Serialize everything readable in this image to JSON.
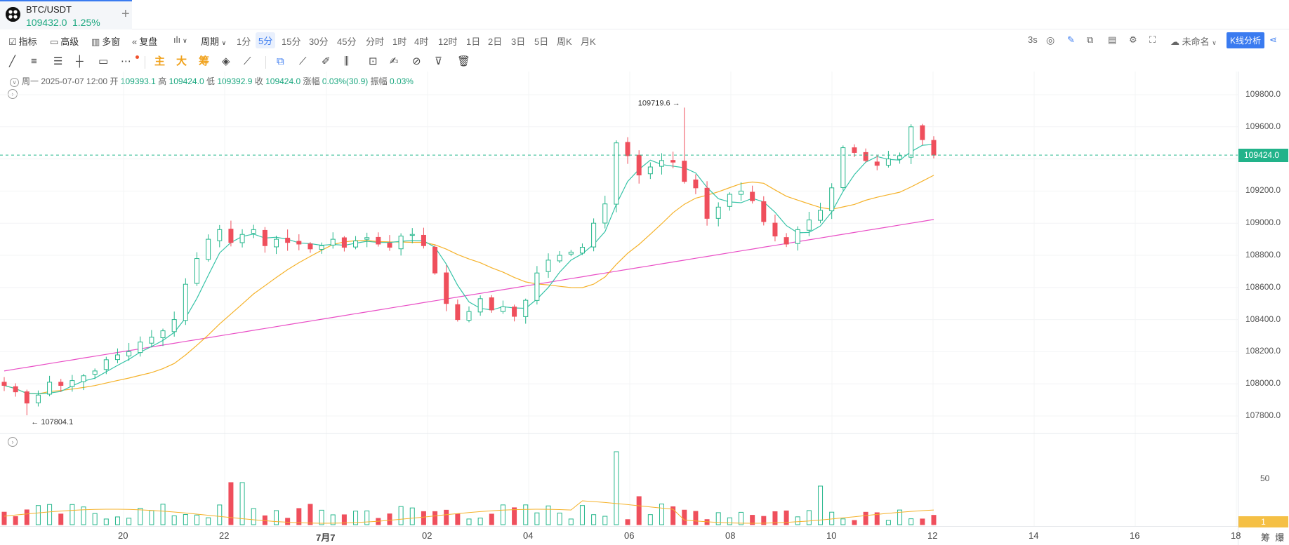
{
  "tab": {
    "symbol": "BTC/USDT",
    "price": "109432.0",
    "change": "1.25%",
    "add_icon": "plus-icon"
  },
  "toolbar": {
    "indicators": "指标",
    "advanced": "高级",
    "multi": "多窗",
    "replay": "复盘",
    "chart_type_icon": "candlestick-icon",
    "period": "周期",
    "periods": [
      "1分",
      "5分",
      "15分",
      "30分",
      "45分",
      "分时",
      "1时",
      "4时",
      "12时",
      "1日",
      "2日",
      "3日",
      "5日",
      "周K",
      "月K"
    ],
    "active_period": "5分",
    "refresh": "3s",
    "unnamed": "未命名",
    "kline_analysis": "K线分析"
  },
  "drawing": {
    "main": "主",
    "big": "大",
    "chips": "筹"
  },
  "ohlc": {
    "date": "周一 2025-07-07 12:00",
    "open_label": "开",
    "open": "109393.1",
    "high_label": "高",
    "high": "109424.0",
    "low_label": "低",
    "low": "109392.9",
    "close_label": "收",
    "close": "109424.0",
    "change_label": "涨幅",
    "change": "0.03%(30.9)",
    "amp_label": "振幅",
    "amp": "0.03%"
  },
  "price_axis": {
    "labels": [
      "109800.0",
      "109600.0",
      "109400.0",
      "109200.0",
      "109000.0",
      "108800.0",
      "108600.0",
      "108400.0",
      "108200.0",
      "108000.0",
      "107800.0"
    ],
    "current": "109424.0"
  },
  "volume_axis": {
    "label": "50",
    "current": "1"
  },
  "time_axis": {
    "labels": [
      "20",
      "22",
      "7月7",
      "02",
      "04",
      "06",
      "08",
      "10",
      "12",
      "14",
      "16",
      "18"
    ]
  },
  "bottom_buttons": {
    "chips": "筹",
    "explode": "爆"
  },
  "annotations": {
    "high": "109719.6",
    "low": "107804.1"
  },
  "colors": {
    "up": "#26b78c",
    "down": "#ef4f5c",
    "ma_fast": "#36c3a7",
    "ma_mid": "#f5b22a",
    "ma_slow": "#e94fc6",
    "accent": "#3a7bf0"
  },
  "chart_data": {
    "type": "candlestick",
    "symbol": "BTC/USDT",
    "interval": "5分",
    "price_range": [
      107700,
      109900
    ],
    "last_price": 109424.0,
    "session_high": 109719.6,
    "session_low": 107804.1,
    "close_series": [
      107990,
      107950,
      107880,
      107930,
      108010,
      107990,
      108020,
      108050,
      108080,
      108150,
      108180,
      108200,
      108260,
      108290,
      108330,
      108400,
      108620,
      108780,
      108900,
      108960,
      108880,
      108930,
      108960,
      108860,
      108900,
      108880,
      108870,
      108840,
      108860,
      108900,
      108850,
      108890,
      108910,
      108870,
      108850,
      108920,
      108930,
      108860,
      108690,
      108500,
      108400,
      108450,
      108530,
      108460,
      108480,
      108420,
      108520,
      108690,
      108770,
      108800,
      108820,
      108850,
      109000,
      109120,
      109500,
      109420,
      109300,
      109350,
      109390,
      109380,
      109260,
      109220,
      109030,
      109100,
      109180,
      109200,
      109140,
      109010,
      108920,
      108870,
      108960,
      109020,
      109080,
      109220,
      109470,
      109440,
      109390,
      109360,
      109400,
      109420,
      109600,
      109520,
      109424
    ]
  }
}
